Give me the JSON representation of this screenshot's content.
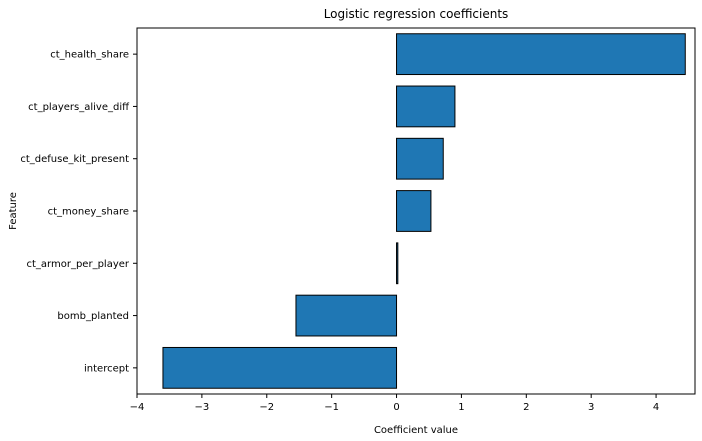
{
  "chart_data": {
    "type": "bar",
    "orientation": "horizontal",
    "title": "Logistic regression coefficients",
    "xlabel": "Coefficient value",
    "ylabel": "Feature",
    "categories": [
      "ct_health_share",
      "ct_players_alive_diff",
      "ct_defuse_kit_present",
      "ct_money_share",
      "ct_armor_per_player",
      "bomb_planted",
      "intercept"
    ],
    "values": [
      4.45,
      0.9,
      0.72,
      0.53,
      0.02,
      -1.55,
      -3.6
    ],
    "xlim": [
      -4.0,
      4.6
    ],
    "xticks": [
      -4,
      -3,
      -2,
      -1,
      0,
      1,
      2,
      3,
      4
    ],
    "xtick_labels": [
      "−4",
      "−3",
      "−2",
      "−1",
      "0",
      "1",
      "2",
      "3",
      "4"
    ],
    "bar_color": "#1f77b4",
    "edge_color": "#000000",
    "grid": false
  }
}
